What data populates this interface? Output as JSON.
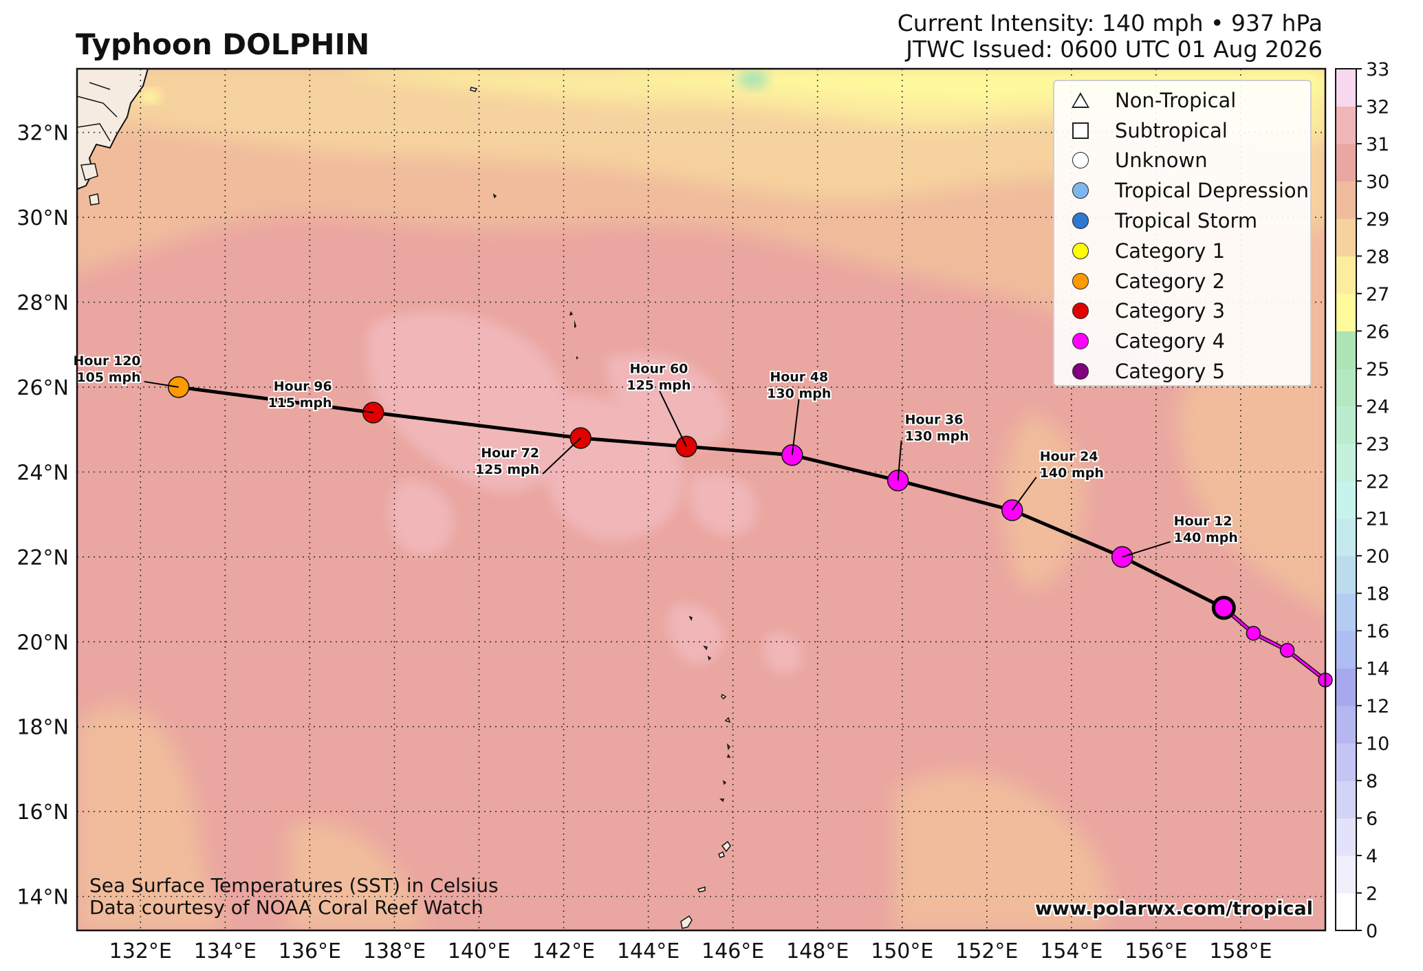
{
  "header": {
    "title": "Typhoon DOLPHIN",
    "intensity": "Current Intensity: 140 mph • 937 hPa",
    "issued": "JTWC Issued: 0600 UTC 01 Aug 2026"
  },
  "map": {
    "lon_range": [
      130.5,
      160
    ],
    "lat_range": [
      13.2,
      33.5
    ],
    "lon_ticks": [
      "132°E",
      "134°E",
      "136°E",
      "138°E",
      "140°E",
      "142°E",
      "144°E",
      "146°E",
      "148°E",
      "150°E",
      "152°E",
      "154°E",
      "156°E",
      "158°E"
    ],
    "lat_ticks": [
      "14°N",
      "16°N",
      "18°N",
      "20°N",
      "22°N",
      "24°N",
      "26°N",
      "28°N",
      "30°N",
      "32°N"
    ]
  },
  "track": {
    "forecast_points": [
      {
        "lon": 157.6,
        "lat": 20.8,
        "category": "Category 4",
        "current": true
      },
      {
        "lon": 155.2,
        "lat": 22.0,
        "category": "Category 4",
        "hour_label": "Hour 12",
        "wind_label": "140 mph"
      },
      {
        "lon": 152.6,
        "lat": 23.1,
        "category": "Category 4",
        "hour_label": "Hour 24",
        "wind_label": "140 mph"
      },
      {
        "lon": 149.9,
        "lat": 23.8,
        "category": "Category 4",
        "hour_label": "Hour 36",
        "wind_label": "130 mph"
      },
      {
        "lon": 147.4,
        "lat": 24.4,
        "category": "Category 4",
        "hour_label": "Hour 48",
        "wind_label": "130 mph"
      },
      {
        "lon": 144.9,
        "lat": 24.6,
        "category": "Category 3",
        "hour_label": "Hour 60",
        "wind_label": "125 mph"
      },
      {
        "lon": 142.4,
        "lat": 24.8,
        "category": "Category 3",
        "hour_label": "Hour 72",
        "wind_label": "125 mph"
      },
      {
        "lon": 137.5,
        "lat": 25.4,
        "category": "Category 3",
        "hour_label": "Hour 96",
        "wind_label": "115 mph"
      },
      {
        "lon": 132.9,
        "lat": 26.0,
        "category": "Category 2",
        "hour_label": "Hour 120",
        "wind_label": "105 mph"
      }
    ],
    "past_points": [
      {
        "lon": 157.6,
        "lat": 20.8
      },
      {
        "lon": 158.3,
        "lat": 20.2
      },
      {
        "lon": 159.1,
        "lat": 19.8
      },
      {
        "lon": 160.0,
        "lat": 19.1
      }
    ]
  },
  "legend": {
    "items": [
      {
        "label": "Non-Tropical",
        "shape": "triangle",
        "color": "#ffffff"
      },
      {
        "label": "Subtropical",
        "shape": "square",
        "color": "#ffffff"
      },
      {
        "label": "Unknown",
        "shape": "circle",
        "color": "#ffffff"
      },
      {
        "label": "Tropical Depression",
        "shape": "circle",
        "color": "#7fb6ee"
      },
      {
        "label": "Tropical Storm",
        "shape": "circle",
        "color": "#2e78d2"
      },
      {
        "label": "Category 1",
        "shape": "circle",
        "color": "#ffff00"
      },
      {
        "label": "Category 2",
        "shape": "circle",
        "color": "#ff9a00"
      },
      {
        "label": "Category 3",
        "shape": "circle",
        "color": "#e00000"
      },
      {
        "label": "Category 4",
        "shape": "circle",
        "color": "#ff00ff"
      },
      {
        "label": "Category 5",
        "shape": "circle",
        "color": "#800080"
      }
    ]
  },
  "colorbar": {
    "ticks": [
      "0",
      "2",
      "4",
      "6",
      "8",
      "10",
      "12",
      "14",
      "16",
      "18",
      "20",
      "21",
      "22",
      "23",
      "24",
      "25",
      "26",
      "27",
      "28",
      "29",
      "30",
      "31",
      "32",
      "33"
    ],
    "colors": [
      "#ffffff",
      "#f0f0fc",
      "#e2e2fa",
      "#d3d3f7",
      "#c5c5f4",
      "#b6b6f1",
      "#a8a8ee",
      "#aebdf2",
      "#b4ccf2",
      "#bcdcee",
      "#c4eaee",
      "#c6f4ec",
      "#c4f0dc",
      "#bcecd0",
      "#b4e8c0",
      "#ace4b4",
      "#fffa9c",
      "#fcec9e",
      "#f6d29e",
      "#f0bc9c",
      "#eaa6a0",
      "#f0b6b8",
      "#f8d8ee"
    ]
  },
  "credits": {
    "line1": "Sea Surface Temperatures (SST) in Celsius",
    "line2": "Data courtesy of NOAA Coral Reef Watch",
    "website": "www.polarwx.com/tropical"
  }
}
